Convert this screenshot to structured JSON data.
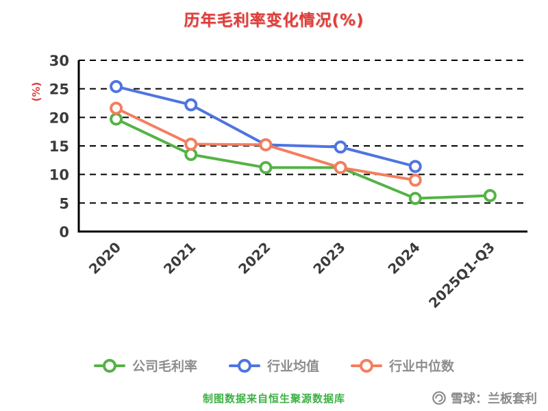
{
  "title": "历年毛利率变化情况(%)",
  "chart_data": {
    "type": "line",
    "categories": [
      "2020",
      "2021",
      "2022",
      "2023",
      "2024",
      "2025Q1-Q3"
    ],
    "series": [
      {
        "name": "公司毛利率",
        "color": "#54b345",
        "values": [
          19.7,
          13.5,
          11.2,
          11.2,
          5.8,
          6.3
        ]
      },
      {
        "name": "行业均值",
        "color": "#4f74e0",
        "values": [
          25.4,
          22.2,
          15.2,
          14.8,
          11.4,
          null
        ]
      },
      {
        "name": "行业中位数",
        "color": "#f47e5e",
        "values": [
          21.6,
          15.3,
          15.2,
          11.2,
          9.0,
          null
        ]
      }
    ],
    "ylabel": "(%)",
    "ylim": [
      0,
      30
    ],
    "yticks": [
      0,
      5,
      10,
      15,
      20,
      25,
      30
    ],
    "grid": true,
    "grid_style": "dashed",
    "legend_position": "bottom"
  },
  "footer": {
    "source_note": "制图数据来自恒生聚源数据库"
  },
  "watermark": {
    "brand": "雪球：兰板套利",
    "icon": "xueqiu-snowball-icon"
  },
  "colors": {
    "title": "#e13c39",
    "axis": "#000000",
    "tick_label": "#3b3b3b",
    "legend_label": "#8d8d8d",
    "source_note": "#3db045",
    "watermark": "#8a8a8a",
    "background": "#ffffff"
  }
}
